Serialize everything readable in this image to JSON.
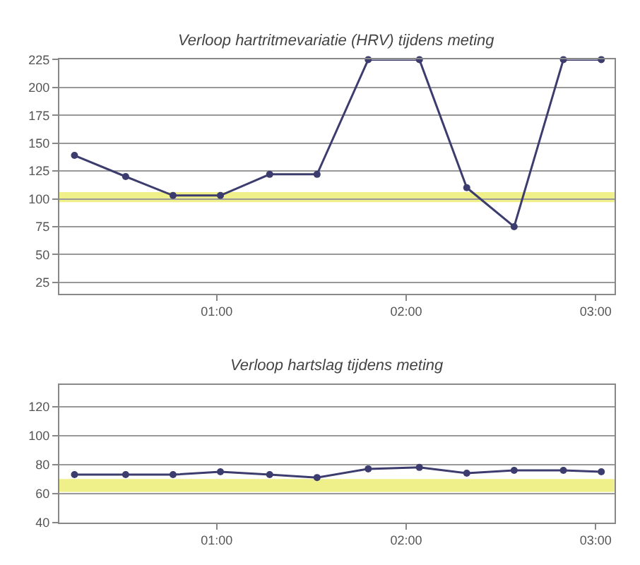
{
  "chart_data": [
    {
      "type": "line",
      "title": "Verloop hartritmevariatie (HRV) tijdens meting",
      "x": [
        0.25,
        0.52,
        0.77,
        1.02,
        1.28,
        1.53,
        1.8,
        2.07,
        2.32,
        2.57,
        2.83,
        3.03
      ],
      "series": [
        {
          "color": "#3c3c6e",
          "values": [
            139,
            120,
            103,
            103,
            122,
            122,
            225,
            225,
            110,
            75,
            225,
            225
          ]
        }
      ],
      "xlim": [
        0.17,
        3.1
      ],
      "xticks": [
        {
          "value": 1,
          "label": "01:00"
        },
        {
          "value": 2,
          "label": "02:00"
        },
        {
          "value": 3,
          "label": "03:00"
        }
      ],
      "ylim": [
        15,
        225
      ],
      "yticks": [
        25,
        50,
        75,
        100,
        125,
        150,
        175,
        200,
        225
      ],
      "bands": [
        {
          "axis": "y",
          "from": 97,
          "to": 106,
          "color": "#f0f08a"
        }
      ],
      "grid": "y",
      "marker": "circle",
      "line_style": "solid"
    },
    {
      "type": "line",
      "title": "Verloop hartslag tijdens meting",
      "x": [
        0.25,
        0.52,
        0.77,
        1.02,
        1.28,
        1.53,
        1.8,
        2.07,
        2.32,
        2.57,
        2.83,
        3.03
      ],
      "series": [
        {
          "color": "#3c3c6e",
          "values": [
            73,
            73,
            73,
            75,
            73,
            71,
            77,
            78,
            74,
            76,
            76,
            75
          ]
        }
      ],
      "xlim": [
        0.17,
        3.1
      ],
      "xticks": [
        {
          "value": 1,
          "label": "01:00"
        },
        {
          "value": 2,
          "label": "02:00"
        },
        {
          "value": 3,
          "label": "03:00"
        }
      ],
      "ylim": [
        40,
        135
      ],
      "yticks": [
        40,
        60,
        80,
        100,
        120
      ],
      "bands": [
        {
          "axis": "y",
          "from": 61,
          "to": 70,
          "color": "#f0f08a"
        }
      ],
      "grid": "y",
      "marker": "circle",
      "line_style": "solid"
    }
  ]
}
